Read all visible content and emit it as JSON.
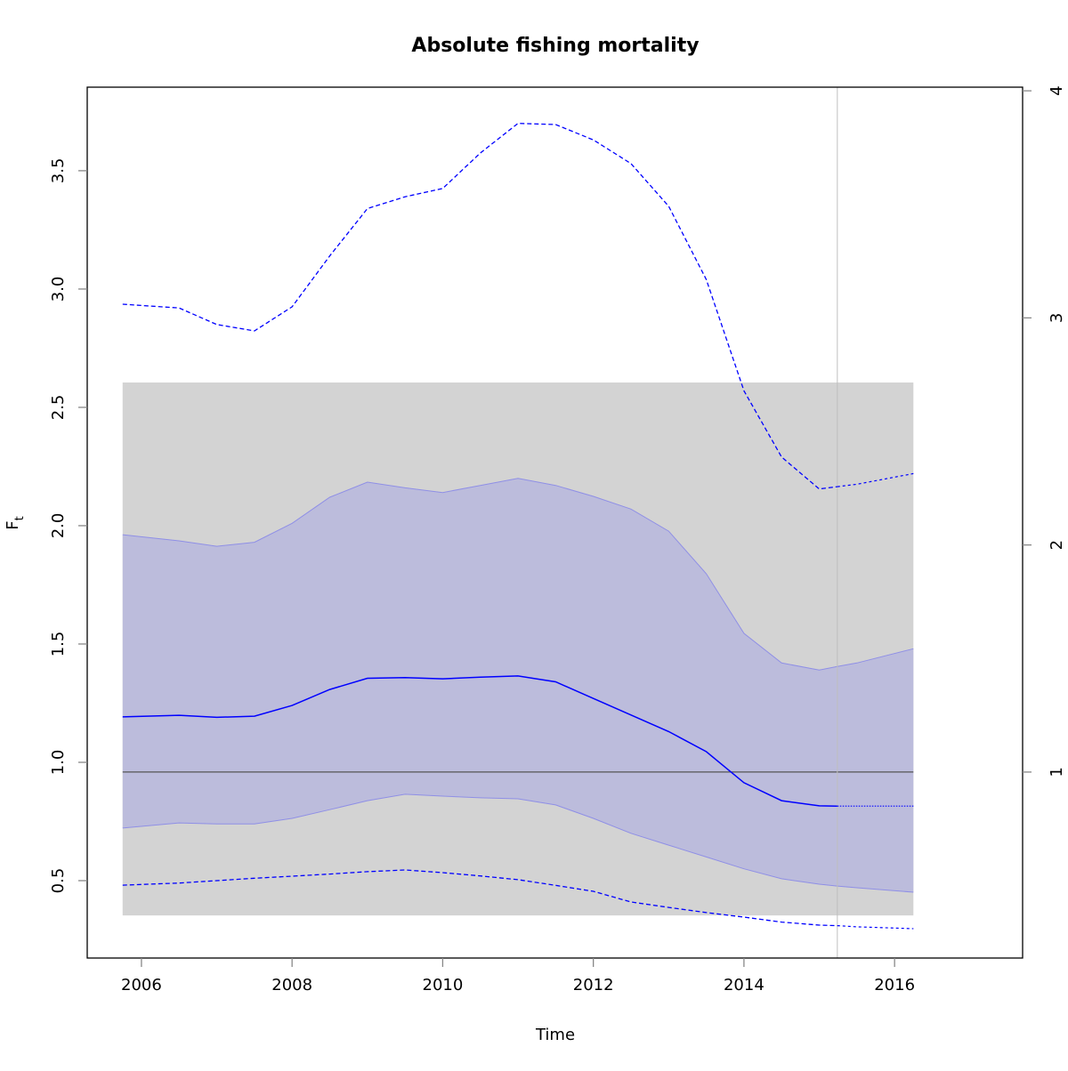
{
  "chart_data": {
    "type": "line",
    "title": "Absolute fishing mortality",
    "xlabel": "Time",
    "ylabel": "F",
    "ylabel_subscript": "t",
    "xlim": [
      2005.28,
      2017.7
    ],
    "ylim": [
      0.173,
      3.853
    ],
    "ylim_right": [
      0.181,
      4.016
    ],
    "grid": false,
    "x_ticks": [
      2006,
      2008,
      2010,
      2012,
      2014,
      2016
    ],
    "x_tick_labels": [
      "2006",
      "2008",
      "2010",
      "2012",
      "2014",
      "2016"
    ],
    "y_ticks": [
      0.5,
      1.0,
      1.5,
      2.0,
      2.5,
      3.0,
      3.5
    ],
    "y_tick_labels": [
      "0.5",
      "1.0",
      "1.5",
      "2.0",
      "2.5",
      "3.0",
      "3.5"
    ],
    "y_right_ticks": [
      1,
      2,
      3,
      4
    ],
    "y_right_tick_labels": [
      "1",
      "2",
      "3",
      "4"
    ],
    "background_region": {
      "x": [
        2005.75,
        2016.25
      ],
      "y": [
        0.353,
        2.605
      ],
      "color": "#d3d3d3"
    },
    "reference_hline": {
      "y": 0.959,
      "color": "#555555"
    },
    "reference_vline": {
      "x": 2015.24,
      "color": "#bebebe"
    },
    "colors": {
      "line": "#0000ff",
      "band_fill": "#bcbcdc",
      "band_edge": "#8f8fe6"
    },
    "x": [
      2005.75,
      2006.5,
      2007,
      2007.5,
      2008,
      2008.5,
      2009,
      2009.5,
      2010,
      2010.5,
      2011,
      2011.5,
      2012,
      2012.5,
      2013,
      2013.5,
      2014,
      2014.5,
      2015,
      2015.24,
      2015.5,
      2016.25
    ],
    "series": [
      {
        "role": "estimate",
        "style": "solid",
        "values": [
          1.192,
          1.199,
          1.19,
          1.195,
          1.24,
          1.308,
          1.355,
          1.358,
          1.353,
          1.36,
          1.365,
          1.34,
          1.27,
          1.2,
          1.13,
          1.045,
          0.914,
          0.838,
          0.816,
          0.815,
          0.815,
          0.815
        ]
      },
      {
        "role": "band-upper",
        "style": "fill",
        "values": [
          1.962,
          1.936,
          1.913,
          1.93,
          2.01,
          2.12,
          2.184,
          2.16,
          2.14,
          2.17,
          2.2,
          2.17,
          2.124,
          2.07,
          1.977,
          1.797,
          1.545,
          1.42,
          1.39,
          1.405,
          1.42,
          1.48
        ]
      },
      {
        "role": "band-lower",
        "style": "fill",
        "values": [
          0.722,
          0.744,
          0.74,
          0.74,
          0.763,
          0.8,
          0.838,
          0.865,
          0.857,
          0.85,
          0.846,
          0.82,
          0.763,
          0.7,
          0.65,
          0.6,
          0.55,
          0.508,
          0.485,
          0.477,
          0.47,
          0.451
        ]
      },
      {
        "role": "upper-dashed",
        "style": "dashed",
        "values": [
          2.936,
          2.92,
          2.85,
          2.823,
          2.925,
          3.14,
          3.34,
          3.39,
          3.425,
          3.575,
          3.7,
          3.695,
          3.63,
          3.53,
          3.35,
          3.04,
          2.57,
          2.29,
          2.155,
          2.165,
          2.175,
          2.22
        ]
      },
      {
        "role": "lower-dashed",
        "style": "dashed",
        "values": [
          0.481,
          0.49,
          0.5,
          0.51,
          0.519,
          0.528,
          0.538,
          0.545,
          0.534,
          0.52,
          0.504,
          0.48,
          0.455,
          0.41,
          0.387,
          0.365,
          0.346,
          0.325,
          0.312,
          0.31,
          0.305,
          0.297
        ]
      }
    ]
  }
}
